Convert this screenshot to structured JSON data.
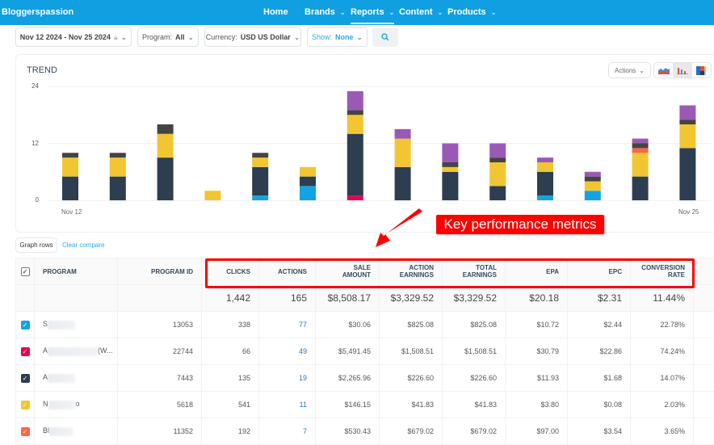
{
  "nav": {
    "brand": "Bloggerspassion",
    "items": [
      {
        "label": "Home"
      },
      {
        "label": "Brands",
        "dropdown": true
      },
      {
        "label": "Reports",
        "dropdown": true,
        "active": true
      },
      {
        "label": "Content",
        "dropdown": true
      },
      {
        "label": "Products",
        "dropdown": true
      }
    ]
  },
  "filters": {
    "date_range": "Nov 12 2024 - Nov 25 2024",
    "program_label": "Program:",
    "program_value": "All",
    "currency_label": "Currency:",
    "currency_value": "USD US Dollar",
    "show_label": "Show:",
    "show_value": "None"
  },
  "chart_card": {
    "title": "TREND",
    "actions_label": "Actions",
    "chart_types": [
      "area-chart",
      "bar-chart",
      "treemap-chart"
    ],
    "selected_type": "bar-chart"
  },
  "chart_data": {
    "type": "bar",
    "stacked": true,
    "title": "TREND",
    "x_tick_labels": [
      "Nov 12",
      "Nov 25"
    ],
    "y_ticks": [
      "0",
      "12",
      "24"
    ],
    "ylim": [
      0,
      24
    ],
    "grid": true,
    "categories": [
      "Nov 12",
      "Nov 13",
      "Nov 14",
      "Nov 15",
      "Nov 16",
      "Nov 17",
      "Nov 18",
      "Nov 19",
      "Nov 20",
      "Nov 21",
      "Nov 22",
      "Nov 23",
      "Nov 24",
      "Nov 25"
    ],
    "series": [
      {
        "color": "#12a3e3",
        "values": [
          0,
          0,
          0,
          0,
          1,
          3,
          0,
          0,
          0,
          0,
          1,
          2,
          0,
          0
        ]
      },
      {
        "color": "#e8004f",
        "values": [
          0,
          0,
          0,
          0,
          0,
          0,
          1,
          0,
          0,
          0,
          0,
          0,
          0,
          0
        ]
      },
      {
        "color": "#2c3e50",
        "values": [
          5,
          5,
          9,
          0,
          6,
          2,
          13,
          7,
          6,
          3,
          5,
          0,
          5,
          11
        ]
      },
      {
        "color": "#f2c532",
        "values": [
          4,
          4,
          5,
          2,
          2,
          2,
          4,
          6,
          1,
          5,
          2,
          2,
          5,
          5
        ]
      },
      {
        "color": "#ff6543",
        "values": [
          0,
          0,
          0,
          0,
          0,
          0,
          0,
          0,
          0,
          0,
          0,
          0,
          1,
          0
        ]
      },
      {
        "color": "#444444",
        "values": [
          1,
          1,
          2,
          0,
          1,
          0,
          1,
          0,
          1,
          1,
          0,
          1,
          1,
          1
        ]
      },
      {
        "color": "#9b59b6",
        "values": [
          0,
          0,
          0,
          0,
          0,
          0,
          4,
          2,
          4,
          3,
          1,
          1,
          1,
          3
        ]
      }
    ]
  },
  "controls": {
    "graph_rows": "Graph rows",
    "clear_compare": "Clear compare"
  },
  "annotation": {
    "label": "Key performance metrics"
  },
  "table": {
    "headers": [
      "PROGRAM",
      "PROGRAM ID",
      "CLICKS",
      "ACTIONS",
      "SALE AMOUNT",
      "ACTION EARNINGS",
      "TOTAL EARNINGS",
      "EPA",
      "EPC",
      "CONVERSION RATE"
    ],
    "totals": [
      "",
      "",
      "1,442",
      "165",
      "$8,508.17",
      "$3,329.52",
      "$3,329.52",
      "$20.18",
      "$2.31",
      "11.44%"
    ],
    "rows": [
      {
        "color": "#12a3e3",
        "program_start": "S",
        "program_end": "",
        "program_id": "13053",
        "clicks": "338",
        "actions": "77",
        "sale_amount": "$30.06",
        "action_earnings": "$825.08",
        "total_earnings": "$825.08",
        "epa": "$10.72",
        "epc": "$2.44",
        "conversion_rate": "22.78%"
      },
      {
        "color": "#e8004f",
        "program_start": "A",
        "program_end": "(W...",
        "program_id": "22744",
        "clicks": "66",
        "actions": "49",
        "sale_amount": "$5,491.45",
        "action_earnings": "$1,508.51",
        "total_earnings": "$1,508.51",
        "epa": "$30.79",
        "epc": "$22.86",
        "conversion_rate": "74.24%"
      },
      {
        "color": "#2c3e50",
        "program_start": "A",
        "program_end": "",
        "program_id": "7443",
        "clicks": "135",
        "actions": "19",
        "sale_amount": "$2,265.96",
        "action_earnings": "$226.60",
        "total_earnings": "$226.60",
        "epa": "$11.93",
        "epc": "$1.68",
        "conversion_rate": "14.07%"
      },
      {
        "color": "#f2c532",
        "program_start": "N",
        "program_end": "o",
        "program_id": "5618",
        "clicks": "541",
        "actions": "11",
        "sale_amount": "$146.15",
        "action_earnings": "$41.83",
        "total_earnings": "$41.83",
        "epa": "$3.80",
        "epc": "$0.08",
        "conversion_rate": "2.03%"
      },
      {
        "color": "#ff6543",
        "program_start": "Bl",
        "program_end": "",
        "program_id": "11352",
        "clicks": "192",
        "actions": "7",
        "sale_amount": "$530.43",
        "action_earnings": "$679.02",
        "total_earnings": "$679.02",
        "epa": "$97.00",
        "epc": "$3.54",
        "conversion_rate": "3.65%"
      }
    ]
  }
}
